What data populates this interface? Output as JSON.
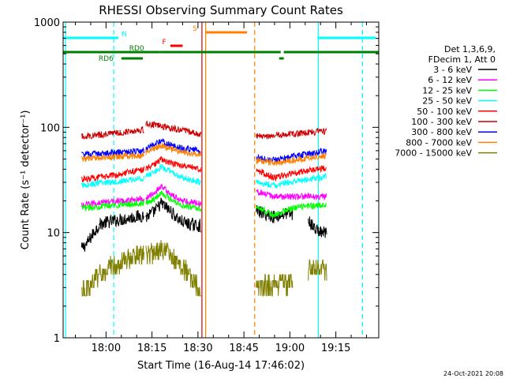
{
  "chart_data": {
    "type": "line",
    "title": "RHESSI Observing Summary Count Rates",
    "xlabel": "Start Time (16-Aug-14 17:46:02)",
    "ylabel": "Count Rate (s⁻¹ detector⁻¹)",
    "y_scale": "log",
    "ylim": [
      1,
      1000
    ],
    "y_ticks": [
      1,
      10,
      100,
      1000
    ],
    "y_tick_labels": [
      "1",
      "10",
      "100",
      "1000"
    ],
    "xlim_minutes": [
      -14,
      89
    ],
    "x_ticks_minutes": [
      0,
      15,
      30,
      45,
      60,
      75
    ],
    "x_tick_labels": [
      "18:00",
      "18:15",
      "18:30",
      "18:45",
      "19:00",
      "19:15"
    ],
    "legend_header": [
      "Det 1,3,6,9,",
      "FDecim 1, Att 0"
    ],
    "legend_placement": "right",
    "footer_date": "24-Oct-2021 20:08",
    "series": [
      {
        "name": "3 - 6 keV",
        "color": "#000000",
        "segments": [
          {
            "start": -8,
            "end": 12.5,
            "pts": [
              [
                -8,
                7
              ],
              [
                -6,
                8
              ],
              [
                -4,
                10
              ],
              [
                -2,
                12
              ],
              [
                0,
                12.5
              ],
              [
                3,
                13
              ],
              [
                6,
                13.5
              ],
              [
                9,
                14
              ],
              [
                12.5,
                14.5
              ]
            ]
          },
          {
            "start": 13,
            "end": 31,
            "pts": [
              [
                13,
                14
              ],
              [
                16,
                16
              ],
              [
                18,
                19
              ],
              [
                21,
                16
              ],
              [
                24,
                13
              ],
              [
                27,
                12
              ],
              [
                31,
                11.5
              ]
            ]
          },
          {
            "start": 49,
            "end": 61,
            "pts": [
              [
                49,
                16
              ],
              [
                52,
                15
              ],
              [
                55,
                14
              ],
              [
                58,
                15
              ],
              [
                61,
                15
              ]
            ]
          },
          {
            "start": 66,
            "end": 72,
            "pts": [
              [
                66,
                13
              ],
              [
                68,
                11
              ],
              [
                70,
                10
              ],
              [
                72,
                10
              ]
            ]
          }
        ]
      },
      {
        "name": "6 - 12 keV",
        "color": "#ff00ff",
        "segments": [
          {
            "start": -8,
            "end": 12.5,
            "pts": [
              [
                -8,
                18
              ],
              [
                -4,
                19
              ],
              [
                0,
                19.5
              ],
              [
                6,
                20
              ],
              [
                12.5,
                21
              ]
            ]
          },
          {
            "start": 13,
            "end": 31,
            "pts": [
              [
                13,
                21
              ],
              [
                16,
                24
              ],
              [
                18,
                28
              ],
              [
                21,
                23
              ],
              [
                25,
                20
              ],
              [
                31,
                19
              ]
            ]
          },
          {
            "start": 49,
            "end": 61,
            "pts": [
              [
                49,
                25
              ],
              [
                52,
                23
              ],
              [
                55,
                22
              ],
              [
                61,
                22
              ]
            ]
          },
          {
            "start": 61,
            "end": 72,
            "pts": [
              [
                61,
                22
              ],
              [
                66,
                22
              ],
              [
                72,
                22
              ]
            ]
          }
        ]
      },
      {
        "name": "12 - 25 keV",
        "color": "#00ff00",
        "segments": [
          {
            "start": -8,
            "end": 12.5,
            "pts": [
              [
                -8,
                17
              ],
              [
                -4,
                17.5
              ],
              [
                0,
                18
              ],
              [
                6,
                18.5
              ],
              [
                12.5,
                19
              ]
            ]
          },
          {
            "start": 13,
            "end": 31,
            "pts": [
              [
                13,
                19
              ],
              [
                16,
                21
              ],
              [
                18,
                24
              ],
              [
                21,
                21
              ],
              [
                25,
                18
              ],
              [
                31,
                17
              ]
            ]
          },
          {
            "start": 49,
            "end": 61,
            "pts": [
              [
                49,
                18
              ],
              [
                52,
                16
              ],
              [
                55,
                14.5
              ],
              [
                58,
                16
              ],
              [
                61,
                17
              ]
            ]
          },
          {
            "start": 61,
            "end": 72,
            "pts": [
              [
                61,
                17
              ],
              [
                66,
                18
              ],
              [
                72,
                18
              ]
            ]
          }
        ]
      },
      {
        "name": "25 - 50 keV",
        "color": "#00ffff",
        "segments": [
          {
            "start": -8,
            "end": 12.5,
            "pts": [
              [
                -8,
                28
              ],
              [
                -4,
                29
              ],
              [
                0,
                30
              ],
              [
                6,
                31
              ],
              [
                12.5,
                33
              ]
            ]
          },
          {
            "start": 13,
            "end": 31,
            "pts": [
              [
                13,
                34
              ],
              [
                16,
                38
              ],
              [
                18,
                42
              ],
              [
                21,
                38
              ],
              [
                25,
                33
              ],
              [
                31,
                30
              ]
            ]
          },
          {
            "start": 49,
            "end": 72,
            "pts": [
              [
                49,
                30
              ],
              [
                52,
                29
              ],
              [
                55,
                28
              ],
              [
                60,
                30
              ],
              [
                66,
                32
              ],
              [
                72,
                34
              ]
            ]
          }
        ]
      },
      {
        "name": "50 - 100 keV",
        "color": "#ff0000",
        "segments": [
          {
            "start": -8,
            "end": 12.5,
            "pts": [
              [
                -8,
                32
              ],
              [
                -4,
                33
              ],
              [
                0,
                34
              ],
              [
                6,
                37
              ],
              [
                12.5,
                40
              ]
            ]
          },
          {
            "start": 13,
            "end": 31,
            "pts": [
              [
                13,
                40
              ],
              [
                16,
                45
              ],
              [
                18,
                50
              ],
              [
                21,
                46
              ],
              [
                25,
                43
              ],
              [
                31,
                40
              ]
            ]
          },
          {
            "start": 49,
            "end": 72,
            "pts": [
              [
                49,
                40
              ],
              [
                52,
                36
              ],
              [
                55,
                33
              ],
              [
                60,
                36
              ],
              [
                66,
                39
              ],
              [
                72,
                41
              ]
            ]
          }
        ]
      },
      {
        "name": "100 - 300 keV",
        "color": "#cc0000",
        "segments": [
          {
            "start": -8,
            "end": 12.5,
            "pts": [
              [
                -8,
                82
              ],
              [
                -4,
                84
              ],
              [
                0,
                86
              ],
              [
                3,
                88
              ],
              [
                6,
                90
              ],
              [
                9,
                93
              ],
              [
                12.5,
                95
              ]
            ]
          },
          {
            "start": 13,
            "end": 31,
            "pts": [
              [
                13,
                108
              ],
              [
                16,
                105
              ],
              [
                20,
                100
              ],
              [
                24,
                95
              ],
              [
                28,
                90
              ],
              [
                31,
                85
              ]
            ]
          },
          {
            "start": 49,
            "end": 72,
            "pts": [
              [
                49,
                82
              ],
              [
                52,
                83
              ],
              [
                55,
                84
              ],
              [
                60,
                86
              ],
              [
                66,
                89
              ],
              [
                72,
                92
              ]
            ]
          }
        ]
      },
      {
        "name": "300 - 800 keV",
        "color": "#0000ff",
        "segments": [
          {
            "start": -8,
            "end": 12.5,
            "pts": [
              [
                -8,
                55
              ],
              [
                -4,
                56
              ],
              [
                0,
                57
              ],
              [
                6,
                58
              ],
              [
                12.5,
                59
              ]
            ]
          },
          {
            "start": 13,
            "end": 31,
            "pts": [
              [
                13,
                62
              ],
              [
                16,
                70
              ],
              [
                18,
                74
              ],
              [
                21,
                68
              ],
              [
                25,
                63
              ],
              [
                31,
                60
              ]
            ]
          },
          {
            "start": 49,
            "end": 72,
            "pts": [
              [
                49,
                52
              ],
              [
                52,
                50
              ],
              [
                55,
                49
              ],
              [
                60,
                52
              ],
              [
                66,
                56
              ],
              [
                72,
                60
              ]
            ]
          }
        ]
      },
      {
        "name": "800 - 7000 keV",
        "color": "#ff8000",
        "segments": [
          {
            "start": -8,
            "end": 12.5,
            "pts": [
              [
                -8,
                50
              ],
              [
                -4,
                51
              ],
              [
                0,
                52
              ],
              [
                6,
                53
              ],
              [
                12.5,
                54
              ]
            ]
          },
          {
            "start": 13,
            "end": 31,
            "pts": [
              [
                13,
                58
              ],
              [
                16,
                64
              ],
              [
                18,
                67
              ],
              [
                21,
                62
              ],
              [
                25,
                58
              ],
              [
                31,
                55
              ]
            ]
          },
          {
            "start": 49,
            "end": 72,
            "pts": [
              [
                49,
                48
              ],
              [
                52,
                47
              ],
              [
                55,
                46
              ],
              [
                60,
                48
              ],
              [
                66,
                51
              ],
              [
                72,
                54
              ]
            ]
          }
        ]
      },
      {
        "name": "7000 - 15000 keV",
        "color": "#808000",
        "segments": [
          {
            "start": -8,
            "end": 12.5,
            "pts": [
              [
                -8,
                2.6
              ],
              [
                -6,
                3
              ],
              [
                -4,
                3.5
              ],
              [
                -2,
                4
              ],
              [
                0,
                4.5
              ],
              [
                3,
                5
              ],
              [
                6,
                5.5
              ],
              [
                9,
                6
              ],
              [
                12.5,
                6.2
              ]
            ]
          },
          {
            "start": 13,
            "end": 31,
            "pts": [
              [
                13,
                6
              ],
              [
                16,
                6.5
              ],
              [
                18,
                7
              ],
              [
                21,
                6
              ],
              [
                24,
                5
              ],
              [
                27,
                4
              ],
              [
                30,
                3
              ],
              [
                31,
                2.6
              ]
            ]
          },
          {
            "start": 49,
            "end": 61,
            "pts": [
              [
                49,
                3
              ],
              [
                52,
                3.1
              ],
              [
                55,
                3.2
              ],
              [
                58,
                3.3
              ],
              [
                61,
                3.4
              ]
            ]
          },
          {
            "start": 66,
            "end": 72,
            "pts": [
              [
                66,
                4.5
              ],
              [
                68,
                4.5
              ],
              [
                70,
                4.5
              ],
              [
                72,
                4.5
              ]
            ]
          }
        ]
      }
    ],
    "vertical_lines": [
      {
        "x": -13.2,
        "color": "#00ffff",
        "style": "solid"
      },
      {
        "x": 2.5,
        "color": "#00ffff",
        "style": "dashed"
      },
      {
        "x": 69.3,
        "color": "#00ffff",
        "style": "solid"
      },
      {
        "x": 83.7,
        "color": "#00ffff",
        "style": "dashed"
      },
      {
        "x": 31.3,
        "color": "#cc0000",
        "style": "solid"
      },
      {
        "x": 32.5,
        "color": "#ff8000",
        "style": "solid"
      },
      {
        "x": 48.5,
        "color": "#ff8000",
        "style": "dashed"
      }
    ],
    "flag_bars": [
      {
        "label": "N",
        "color": "#00ffff",
        "label_x": 6,
        "y": 48,
        "segments": [
          [
            -14,
            4
          ],
          [
            69,
            88
          ]
        ]
      },
      {
        "label": "S",
        "color": "#ff8000",
        "label_x": 29,
        "y": 41,
        "segments": [
          [
            32.5,
            46
          ]
        ]
      },
      {
        "label": "F",
        "color": "#ff0000",
        "label_x": 19,
        "y": 58,
        "segments": [
          [
            21,
            25
          ]
        ]
      },
      {
        "label": "RD0",
        "color": "#008000",
        "label_x": 10,
        "y": 66,
        "segments": [
          [
            -14,
            17.5
          ],
          [
            17.5,
            57
          ],
          [
            58,
            89
          ]
        ]
      },
      {
        "label": "RD6",
        "color": "#008000",
        "label_x": 0,
        "y": 74,
        "segments": [
          [
            5,
            12
          ],
          [
            56.5,
            58
          ]
        ]
      }
    ]
  }
}
